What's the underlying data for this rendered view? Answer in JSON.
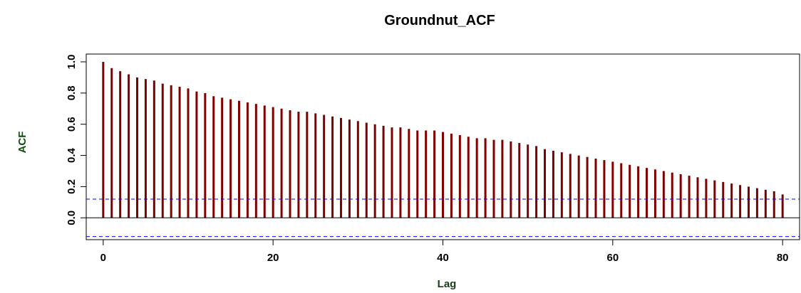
{
  "chart_data": {
    "type": "bar",
    "title": "Groundnut_ACF",
    "xlabel": "Lag",
    "ylabel": "ACF",
    "xlim": [
      -2,
      82
    ],
    "ylim": [
      -0.14,
      1.05
    ],
    "x_ticks": [
      0,
      20,
      40,
      60,
      80
    ],
    "y_ticks": [
      0.0,
      0.2,
      0.4,
      0.6,
      0.8,
      1.0
    ],
    "x_tick_labels": [
      "0",
      "20",
      "40",
      "60",
      "80"
    ],
    "y_tick_labels": [
      "0.0",
      "0.2",
      "0.4",
      "0.6",
      "0.8",
      "1.0"
    ],
    "lags": [
      0,
      1,
      2,
      3,
      4,
      5,
      6,
      7,
      8,
      9,
      10,
      11,
      12,
      13,
      14,
      15,
      16,
      17,
      18,
      19,
      20,
      21,
      22,
      23,
      24,
      25,
      26,
      27,
      28,
      29,
      30,
      31,
      32,
      33,
      34,
      35,
      36,
      37,
      38,
      39,
      40,
      41,
      42,
      43,
      44,
      45,
      46,
      47,
      48,
      49,
      50,
      51,
      52,
      53,
      54,
      55,
      56,
      57,
      58,
      59,
      60,
      61,
      62,
      63,
      64,
      65,
      66,
      67,
      68,
      69,
      70,
      71,
      72,
      73,
      74,
      75,
      76,
      77,
      78,
      79,
      80
    ],
    "values": [
      1.0,
      0.96,
      0.94,
      0.92,
      0.9,
      0.89,
      0.88,
      0.86,
      0.85,
      0.84,
      0.83,
      0.81,
      0.8,
      0.78,
      0.77,
      0.76,
      0.75,
      0.74,
      0.73,
      0.72,
      0.71,
      0.7,
      0.69,
      0.68,
      0.68,
      0.67,
      0.66,
      0.65,
      0.64,
      0.63,
      0.62,
      0.61,
      0.6,
      0.59,
      0.58,
      0.58,
      0.57,
      0.56,
      0.56,
      0.56,
      0.55,
      0.54,
      0.53,
      0.52,
      0.51,
      0.51,
      0.5,
      0.5,
      0.49,
      0.48,
      0.47,
      0.46,
      0.44,
      0.43,
      0.42,
      0.41,
      0.4,
      0.39,
      0.38,
      0.37,
      0.36,
      0.35,
      0.34,
      0.33,
      0.32,
      0.31,
      0.3,
      0.29,
      0.28,
      0.27,
      0.26,
      0.25,
      0.24,
      0.23,
      0.22,
      0.21,
      0.2,
      0.19,
      0.18,
      0.17,
      0.15
    ],
    "confidence_bound": 0.12,
    "bar_color": "#800000",
    "ci_color": "#0000ff",
    "ylabel_color": "#0f4d0f",
    "xlabel_color": "#1a3a1a",
    "grid": false,
    "legend": "none"
  }
}
